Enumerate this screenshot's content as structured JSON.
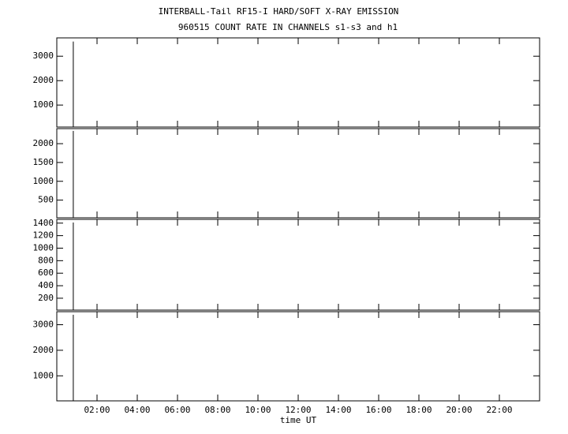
{
  "chart_data": [
    {
      "type": "line",
      "title": "INTERBALL-Tail RF15-I HARD/SOFT X-RAY EMISSION",
      "subtitle": "960515  COUNT RATE IN CHANNELS s1-s3 and h1",
      "xlim": [
        0,
        24
      ],
      "ylim": [
        100,
        3750
      ],
      "yticks": [
        1000,
        2000,
        3000
      ],
      "series": [
        {
          "color": "#000000",
          "x": [
            0.82,
            0.82
          ],
          "values": [
            100,
            3600
          ]
        }
      ]
    },
    {
      "type": "line",
      "xlim": [
        0,
        24
      ],
      "ylim": [
        30,
        2400
      ],
      "yticks": [
        500,
        1000,
        1500,
        2000
      ],
      "series": [
        {
          "color": "#000000",
          "x": [
            0.82,
            0.82
          ],
          "values": [
            30,
            2340
          ]
        }
      ]
    },
    {
      "type": "line",
      "xlim": [
        0,
        24
      ],
      "ylim": [
        10,
        1460
      ],
      "yticks": [
        200,
        400,
        600,
        800,
        1000,
        1200,
        1400
      ],
      "series": [
        {
          "color": "#000000",
          "x": [
            0.82,
            0.82
          ],
          "values": [
            10,
            1410
          ]
        }
      ]
    },
    {
      "type": "line",
      "xlim": [
        0,
        24
      ],
      "ylim": [
        20,
        3510
      ],
      "yticks": [
        1000,
        2000,
        3000
      ],
      "x_label": "time UT",
      "xticks": [
        {
          "value": 2,
          "label": "02:00"
        },
        {
          "value": 4,
          "label": "04:00"
        },
        {
          "value": 6,
          "label": "06:00"
        },
        {
          "value": 8,
          "label": "08:00"
        },
        {
          "value": 10,
          "label": "10:00"
        },
        {
          "value": 12,
          "label": "12:00"
        },
        {
          "value": 14,
          "label": "14:00"
        },
        {
          "value": 16,
          "label": "16:00"
        },
        {
          "value": 18,
          "label": "18:00"
        },
        {
          "value": 20,
          "label": "20:00"
        },
        {
          "value": 22,
          "label": "22:00"
        }
      ],
      "series": [
        {
          "color": "#000000",
          "x": [
            0.82,
            0.82
          ],
          "values": [
            20,
            3390
          ]
        }
      ]
    }
  ]
}
